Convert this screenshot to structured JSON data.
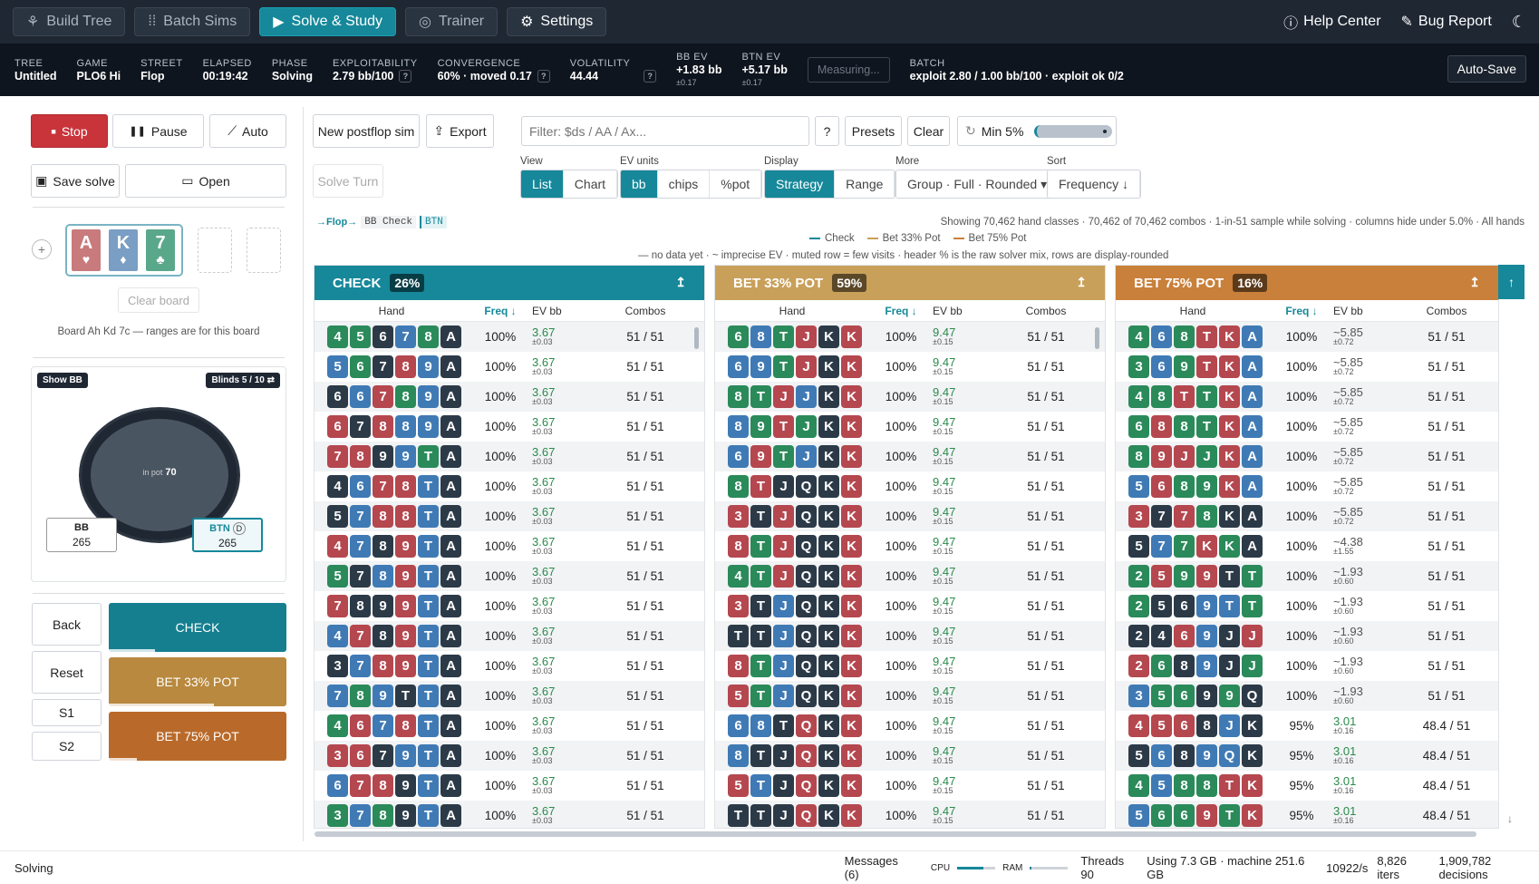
{
  "nav": {
    "tabs": [
      {
        "label": "Build Tree",
        "icon": "tree-icon",
        "active": false
      },
      {
        "label": "Batch Sims",
        "icon": "grid-icon",
        "active": false
      },
      {
        "label": "Solve & Study",
        "icon": "play-icon",
        "active": true
      },
      {
        "label": "Trainer",
        "icon": "target-icon",
        "active": false
      },
      {
        "label": "Settings",
        "icon": "gear-icon",
        "active": false
      }
    ],
    "help": "Help Center",
    "bug": "Bug Report"
  },
  "stats": [
    {
      "label": "TREE",
      "value": "Untitled"
    },
    {
      "label": "GAME",
      "value": "PLO6 Hi"
    },
    {
      "label": "STREET",
      "value": "Flop"
    },
    {
      "label": "ELAPSED",
      "value": "00:19:42"
    },
    {
      "label": "PHASE",
      "value": "Solving"
    },
    {
      "label": "EXPLOITABILITY",
      "value": "2.79 bb/100",
      "help": "?"
    },
    {
      "label": "CONVERGENCE",
      "value": "60% · moved 0.17",
      "help": "?"
    },
    {
      "label": "VOLATILITY",
      "value": "44.44",
      "help": "?"
    },
    {
      "label": "BB EV",
      "value": "+1.83 bb",
      "sub": "±0.17"
    },
    {
      "label": "BTN EV",
      "value": "+5.17 bb",
      "sub": "±0.17"
    }
  ],
  "measuring": "Measuring...",
  "batch": {
    "label": "BATCH",
    "value": "exploit 2.80 / 1.00 bb/100 · exploit ok 0/2"
  },
  "autosave": "Auto-Save",
  "left": {
    "stop": "Stop",
    "pause": "Pause",
    "auto": "Auto",
    "save": "Save solve",
    "open": "Open",
    "plus": "+",
    "board": [
      {
        "rank": "A",
        "suit": "♥",
        "color": "#c97a7c"
      },
      {
        "rank": "K",
        "suit": "♦",
        "color": "#7a9ec4"
      },
      {
        "rank": "7",
        "suit": "♣",
        "color": "#5aa88a"
      }
    ],
    "clear": "Clear board",
    "board_note": "Board Ah Kd 7c — ranges are for this board",
    "show_bb": "Show BB",
    "blinds": "Blinds 5 / 10 ⇄",
    "in_pot": "in pot",
    "pot": "70",
    "bb": {
      "name": "BB",
      "stack": "265"
    },
    "btn": {
      "name": "BTN",
      "dealer": "D",
      "stack": "265"
    },
    "back": "Back",
    "reset": "Reset",
    "s1": "S1",
    "s2": "S2",
    "actions": [
      {
        "label": "CHECK",
        "fill": 0.26
      },
      {
        "label": "BET 33% POT",
        "fill": 0.59
      },
      {
        "label": "BET 75% POT",
        "fill": 0.16
      }
    ]
  },
  "toolbar": {
    "new_sim": "New postflop sim",
    "export": "Export",
    "solve_turn": "Solve Turn",
    "filter_placeholder": "Filter: $ds / AA / Ax...",
    "help": "?",
    "presets": "Presets",
    "clear": "Clear",
    "min": "Min 5%",
    "view_label": "View",
    "view": [
      "List",
      "Chart"
    ],
    "ev_label": "EV units",
    "ev": [
      "bb",
      "chips",
      "%pot"
    ],
    "display_label": "Display",
    "display": [
      "Strategy",
      "Range"
    ],
    "more_label": "More",
    "more": "Group · Full · Rounded ▾",
    "sort_label": "Sort",
    "sort": "Frequency ↓"
  },
  "crumbs": {
    "flop": "→Flop→",
    "check": "BB Check",
    "btn": "BTN"
  },
  "info": "Showing 70,462 hand classes · 70,462 of 70,462 combos · 1-in-51 sample while solving · columns hide under 5.0% · All hands",
  "legend": [
    {
      "label": "Check",
      "color": "#16889a"
    },
    {
      "label": "Bet 33% Pot",
      "color": "#c9a05a"
    },
    {
      "label": "Bet 75% Pot",
      "color": "#c9803a"
    }
  ],
  "note": "— no data yet · ~ imprecise EV · muted row = few visits · header % is the raw solver mix, rows are display-rounded",
  "columns": {
    "hand": "Hand",
    "freq": "Freq ↓",
    "ev": "EV bb",
    "combos": "Combos"
  },
  "suit_colors": {
    "s": "#2c3a48",
    "h": "#b5474f",
    "d": "#3f7ab5",
    "c": "#2a8a5a"
  },
  "panels": [
    {
      "title": "CHECK",
      "pct": "26%",
      "color": "#16889a",
      "ev_color": "#2a8a4a",
      "rows": [
        {
          "hand": "4c5c6s7d8cAs",
          "freq": "100%",
          "ev": "3.67",
          "sd": "±0.03",
          "combos": "51 / 51"
        },
        {
          "hand": "5d6c7s8h9dAs",
          "freq": "100%",
          "ev": "3.67",
          "sd": "±0.03",
          "combos": "51 / 51"
        },
        {
          "hand": "6s6d7h8c9dAs",
          "freq": "100%",
          "ev": "3.67",
          "sd": "±0.03",
          "combos": "51 / 51"
        },
        {
          "hand": "6h7s8h8d9dAs",
          "freq": "100%",
          "ev": "3.67",
          "sd": "±0.03",
          "combos": "51 / 51"
        },
        {
          "hand": "7h8h9s9dTcAs",
          "freq": "100%",
          "ev": "3.67",
          "sd": "±0.03",
          "combos": "51 / 51"
        },
        {
          "hand": "4s6d7h8hTdAs",
          "freq": "100%",
          "ev": "3.67",
          "sd": "±0.03",
          "combos": "51 / 51"
        },
        {
          "hand": "5s7d8h8hTdAs",
          "freq": "100%",
          "ev": "3.67",
          "sd": "±0.03",
          "combos": "51 / 51"
        },
        {
          "hand": "4h7d8s9hTdAs",
          "freq": "100%",
          "ev": "3.67",
          "sd": "±0.03",
          "combos": "51 / 51"
        },
        {
          "hand": "5c7s8d9hTdAs",
          "freq": "100%",
          "ev": "3.67",
          "sd": "±0.03",
          "combos": "51 / 51"
        },
        {
          "hand": "7h8s9s9hTdAs",
          "freq": "100%",
          "ev": "3.67",
          "sd": "±0.03",
          "combos": "51 / 51"
        },
        {
          "hand": "4d7h8s9hTdAs",
          "freq": "100%",
          "ev": "3.67",
          "sd": "±0.03",
          "combos": "51 / 51"
        },
        {
          "hand": "3s7d8h9hTdAs",
          "freq": "100%",
          "ev": "3.67",
          "sd": "±0.03",
          "combos": "51 / 51"
        },
        {
          "hand": "7d8c9dTsTdAs",
          "freq": "100%",
          "ev": "3.67",
          "sd": "±0.03",
          "combos": "51 / 51"
        },
        {
          "hand": "4c6h7d8hTdAs",
          "freq": "100%",
          "ev": "3.67",
          "sd": "±0.03",
          "combos": "51 / 51"
        },
        {
          "hand": "3h6h7s9dTdAs",
          "freq": "100%",
          "ev": "3.67",
          "sd": "±0.03",
          "combos": "51 / 51"
        },
        {
          "hand": "6d7h8h9sTdAs",
          "freq": "100%",
          "ev": "3.67",
          "sd": "±0.03",
          "combos": "51 / 51"
        },
        {
          "hand": "3c7d8c9sTdAs",
          "freq": "100%",
          "ev": "3.67",
          "sd": "±0.03",
          "combos": "51 / 51"
        }
      ]
    },
    {
      "title": "BET 33% POT",
      "pct": "59%",
      "color": "#c9a05a",
      "ev_color": "#2a8a4a",
      "rows": [
        {
          "hand": "6c8dTcJhKsKh",
          "freq": "100%",
          "ev": "9.47",
          "sd": "±0.15",
          "combos": "51 / 51"
        },
        {
          "hand": "6d9dTcJhKsKh",
          "freq": "100%",
          "ev": "9.47",
          "sd": "±0.15",
          "combos": "51 / 51"
        },
        {
          "hand": "8cTcJhJdKsKh",
          "freq": "100%",
          "ev": "9.47",
          "sd": "±0.15",
          "combos": "51 / 51"
        },
        {
          "hand": "8d9cThJcKsKh",
          "freq": "100%",
          "ev": "9.47",
          "sd": "±0.15",
          "combos": "51 / 51"
        },
        {
          "hand": "6d9hTcJdKsKh",
          "freq": "100%",
          "ev": "9.47",
          "sd": "±0.15",
          "combos": "51 / 51"
        },
        {
          "hand": "8cThJsQsKsKh",
          "freq": "100%",
          "ev": "9.47",
          "sd": "±0.15",
          "combos": "51 / 51"
        },
        {
          "hand": "3hTsJhQsKsKh",
          "freq": "100%",
          "ev": "9.47",
          "sd": "±0.15",
          "combos": "51 / 51"
        },
        {
          "hand": "8hTcJhQsKsKh",
          "freq": "100%",
          "ev": "9.47",
          "sd": "±0.15",
          "combos": "51 / 51"
        },
        {
          "hand": "4cTcJhQsKsKh",
          "freq": "100%",
          "ev": "9.47",
          "sd": "±0.15",
          "combos": "51 / 51"
        },
        {
          "hand": "3hTsJdQsKsKh",
          "freq": "100%",
          "ev": "9.47",
          "sd": "±0.15",
          "combos": "51 / 51"
        },
        {
          "hand": "TsTsJdQsKsKh",
          "freq": "100%",
          "ev": "9.47",
          "sd": "±0.15",
          "combos": "51 / 51"
        },
        {
          "hand": "8hTcJdQsKsKh",
          "freq": "100%",
          "ev": "9.47",
          "sd": "±0.15",
          "combos": "51 / 51"
        },
        {
          "hand": "5hTcJdQsKsKh",
          "freq": "100%",
          "ev": "9.47",
          "sd": "±0.15",
          "combos": "51 / 51"
        },
        {
          "hand": "6d8dTsQhKsKh",
          "freq": "100%",
          "ev": "9.47",
          "sd": "±0.15",
          "combos": "51 / 51"
        },
        {
          "hand": "8dTsJsQhKsKh",
          "freq": "100%",
          "ev": "9.47",
          "sd": "±0.15",
          "combos": "51 / 51"
        },
        {
          "hand": "5hTdJsQhKsKh",
          "freq": "100%",
          "ev": "9.47",
          "sd": "±0.15",
          "combos": "51 / 51"
        },
        {
          "hand": "TsTsJsQhKsKh",
          "freq": "100%",
          "ev": "9.47",
          "sd": "±0.15",
          "combos": "51 / 51"
        }
      ]
    },
    {
      "title": "BET 75% POT",
      "pct": "16%",
      "color": "#c9803a",
      "ev_color": "#555",
      "rows": [
        {
          "hand": "4c6d8cThKhAd",
          "freq": "100%",
          "ev": "~5.85",
          "sd": "±0.72",
          "combos": "51 / 51"
        },
        {
          "hand": "3c6d9cThKhAd",
          "freq": "100%",
          "ev": "~5.85",
          "sd": "±0.72",
          "combos": "51 / 51"
        },
        {
          "hand": "4c8cThTcKhAd",
          "freq": "100%",
          "ev": "~5.85",
          "sd": "±0.72",
          "combos": "51 / 51"
        },
        {
          "hand": "6c8h8cTcKhAd",
          "freq": "100%",
          "ev": "~5.85",
          "sd": "±0.72",
          "combos": "51 / 51"
        },
        {
          "hand": "8c9hJhJcKhAd",
          "freq": "100%",
          "ev": "~5.85",
          "sd": "±0.72",
          "combos": "51 / 51"
        },
        {
          "hand": "5d6h8c9cKhAd",
          "freq": "100%",
          "ev": "~5.85",
          "sd": "±0.72",
          "combos": "51 / 51"
        },
        {
          "hand": "3h7s7h8cKsAs",
          "freq": "100%",
          "ev": "~5.85",
          "sd": "±0.72",
          "combos": "51 / 51"
        },
        {
          "hand": "5s7d7cKhKcAs",
          "freq": "100%",
          "ev": "~4.38",
          "sd": "±1.55",
          "combos": "51 / 51"
        },
        {
          "hand": "2c5h9c9hTsTc",
          "freq": "100%",
          "ev": "~1.93",
          "sd": "±0.60",
          "combos": "51 / 51"
        },
        {
          "hand": "2c5s6s9dTdTc",
          "freq": "100%",
          "ev": "~1.93",
          "sd": "±0.60",
          "combos": "51 / 51"
        },
        {
          "hand": "2s4s6h9dJsJh",
          "freq": "100%",
          "ev": "~1.93",
          "sd": "±0.60",
          "combos": "51 / 51"
        },
        {
          "hand": "2h6c8s9dJsJc",
          "freq": "100%",
          "ev": "~1.93",
          "sd": "±0.60",
          "combos": "51 / 51"
        },
        {
          "hand": "3d5c6c9s9cQs",
          "freq": "100%",
          "ev": "~1.93",
          "sd": "±0.60",
          "combos": "51 / 51"
        },
        {
          "hand": "4h5h6h8sJdKs",
          "freq": "95%",
          "ev": "3.01",
          "sd": "±0.16",
          "combos": "48.4 / 51"
        },
        {
          "hand": "5s6d8s9dQdKs",
          "freq": "95%",
          "ev": "3.01",
          "sd": "±0.16",
          "combos": "48.4 / 51"
        },
        {
          "hand": "4c5d8c8cThKh",
          "freq": "95%",
          "ev": "3.01",
          "sd": "±0.16",
          "combos": "48.4 / 51"
        },
        {
          "hand": "5d6c6c9hTcKh",
          "freq": "95%",
          "ev": "3.01",
          "sd": "±0.16",
          "combos": "48.4 / 51"
        }
      ]
    }
  ],
  "footer": {
    "status": "Solving",
    "messages": "Messages (6)",
    "cpu": "CPU",
    "cpu_level": 0.7,
    "ram": "RAM",
    "ram_level": 0.05,
    "threads": "Threads 90",
    "usage": "Using 7.3 GB · machine 251.6 GB",
    "rate": "10922/s",
    "iters": "8,826 iters",
    "decisions": "1,909,782 decisions"
  }
}
